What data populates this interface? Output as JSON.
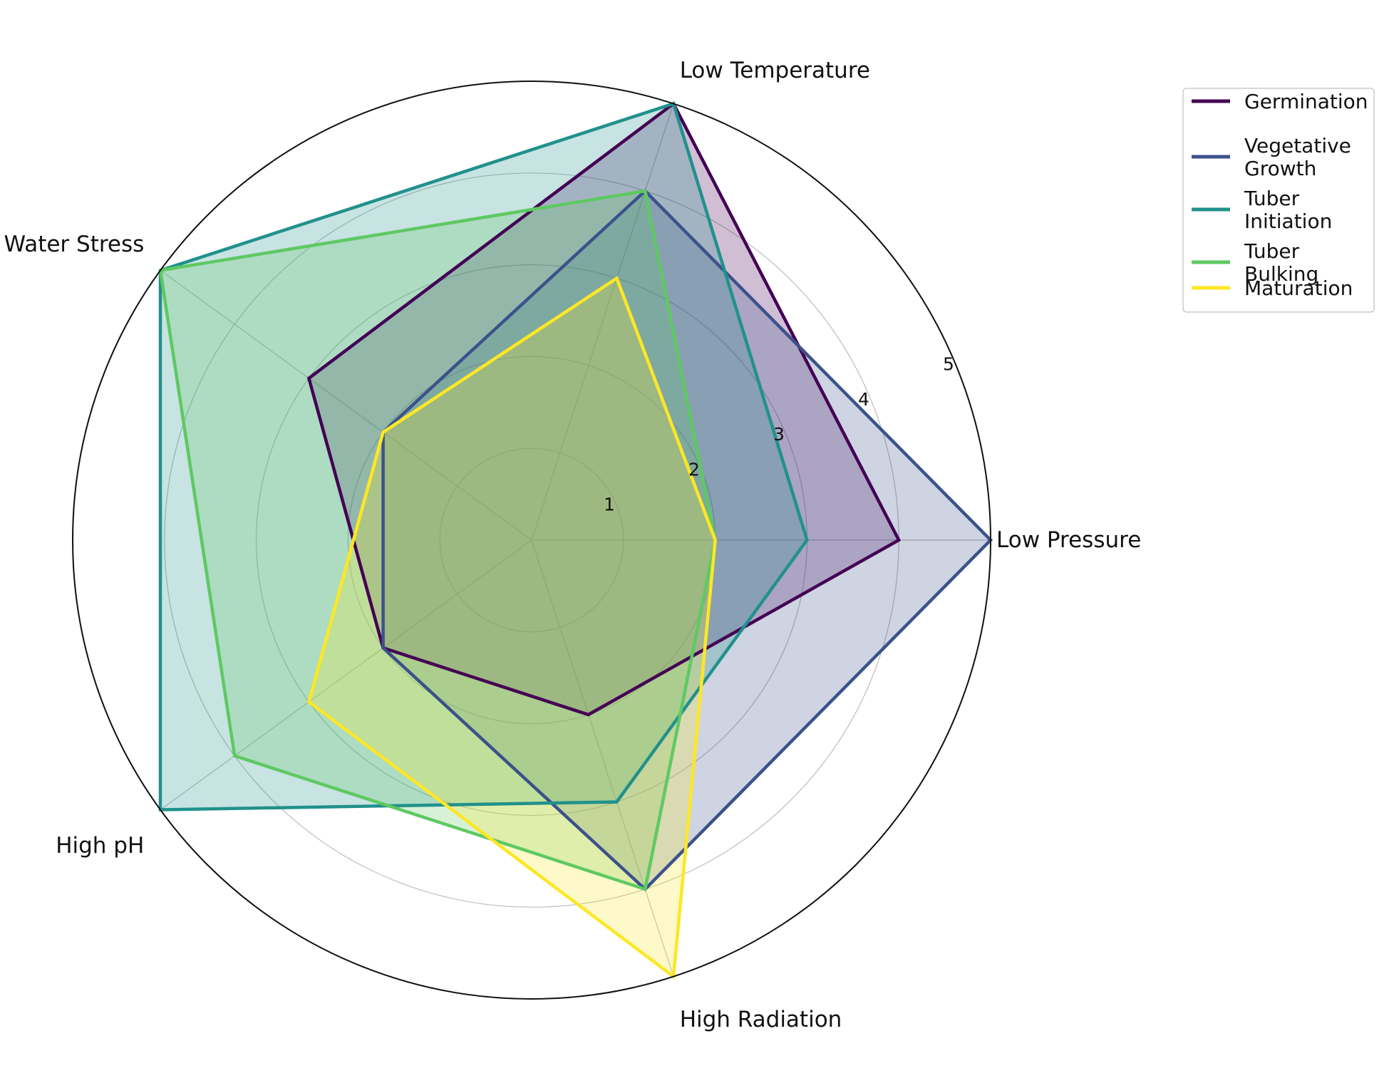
{
  "chart_data": {
    "type": "radar",
    "axes": [
      "Low Pressure",
      "Low Temperature",
      "Water Stress",
      "High pH",
      "High Radiation"
    ],
    "rlim": [
      0,
      5
    ],
    "r_ticks": [
      "1",
      "2",
      "3",
      "4",
      "5"
    ],
    "grid": true,
    "legend_position": "top-right",
    "series": [
      {
        "name": "Germination",
        "values": [
          4,
          5,
          3,
          2,
          2
        ],
        "color": "#440154"
      },
      {
        "name": "Vegetative Growth",
        "values": [
          5,
          4,
          2,
          2,
          4
        ],
        "color": "#3b528b"
      },
      {
        "name": "Tuber Initiation",
        "values": [
          3,
          5,
          5,
          5,
          3
        ],
        "color": "#21918c"
      },
      {
        "name": "Tuber Bulking",
        "values": [
          2,
          4,
          5,
          4,
          4
        ],
        "color": "#5ec962"
      },
      {
        "name": "Maturation",
        "values": [
          2,
          3,
          2,
          3,
          5
        ],
        "color": "#fde725"
      }
    ]
  }
}
